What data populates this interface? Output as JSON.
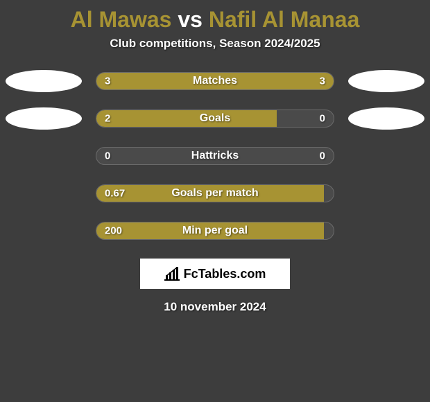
{
  "title": {
    "player1": "Al Mawas",
    "vs": "vs",
    "player2": "Nafil Al Manaa",
    "player1_color": "#a79333",
    "vs_color": "#ffffff",
    "player2_color": "#a79333"
  },
  "subtitle": "Club competitions, Season 2024/2025",
  "bar_colors": {
    "left": "#a79333",
    "right": "#a79333",
    "empty": "transparent",
    "track_bg": "#4a4a4a",
    "track_border": "#6b6b6b"
  },
  "rows": [
    {
      "label": "Matches",
      "left_val": "3",
      "right_val": "3",
      "left_pct": 50,
      "right_pct": 50,
      "left_ellipse": true,
      "right_ellipse": true
    },
    {
      "label": "Goals",
      "left_val": "2",
      "right_val": "0",
      "left_pct": 76,
      "right_pct": 0,
      "left_ellipse": true,
      "right_ellipse": true
    },
    {
      "label": "Hattricks",
      "left_val": "0",
      "right_val": "0",
      "left_pct": 0,
      "right_pct": 0,
      "left_ellipse": false,
      "right_ellipse": false
    },
    {
      "label": "Goals per match",
      "left_val": "0.67",
      "right_val": "",
      "left_pct": 96,
      "right_pct": 0,
      "left_ellipse": false,
      "right_ellipse": false
    },
    {
      "label": "Min per goal",
      "left_val": "200",
      "right_val": "",
      "left_pct": 96,
      "right_pct": 0,
      "left_ellipse": false,
      "right_ellipse": false
    }
  ],
  "logo_text": "FcTables.com",
  "date": "10 november 2024",
  "background_color": "#3d3d3d",
  "ellipse_color": "#ffffff",
  "typography": {
    "title_fontsize": 32,
    "subtitle_fontsize": 17,
    "bar_label_fontsize": 16,
    "bar_value_fontsize": 15,
    "logo_fontsize": 18,
    "date_fontsize": 17,
    "font_family": "Arial"
  }
}
